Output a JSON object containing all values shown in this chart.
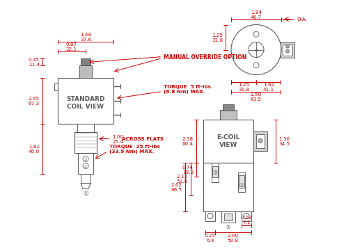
{
  "bg_color": "#ffffff",
  "line_color": "#5a5a5a",
  "dim_color": "#cc0000",
  "dims": {
    "top_dia": "1.84\n46.7",
    "dia_label": "DIA.",
    "top_h1": "1.25\n31.8",
    "top_w1": "1.25\n31.8",
    "top_w2": "1.62\n41.1",
    "top_total": "2.50\n63.5",
    "left_h_top": "0.45\n11.4",
    "left_w1": "0.87\n22.1",
    "left_w2": "1.48\n37.6",
    "left_h_mid": "2.65\n67.3",
    "left_h_bot": "1.81\n46.0",
    "across": "1.00\n25.4",
    "across_label": "ACROSS FLATS",
    "torque1": "TORQUE  5 ft-lbs\n(6.8 Nm) MAX.",
    "torque2": "TORQUE  25 ft-lbs\n(33.9 Nm) MAX.",
    "manual": "MANUAL OVERRIDE OPTION",
    "std_coil": "STANDARD\nCOIL VIEW",
    "ecoil": "E-COIL\nVIEW",
    "right_h": "2.38\n60.4",
    "right_r1": "1.36\n34.5",
    "right_w1": "0.74\n18.8",
    "right_w2": "2.12\n53.8",
    "right_w3": "2.62\n66.5",
    "right_bw1": "0.25\n6.4",
    "right_bw2": "2.00\n50.8",
    "right_bw3": "0.28\n7.1"
  }
}
